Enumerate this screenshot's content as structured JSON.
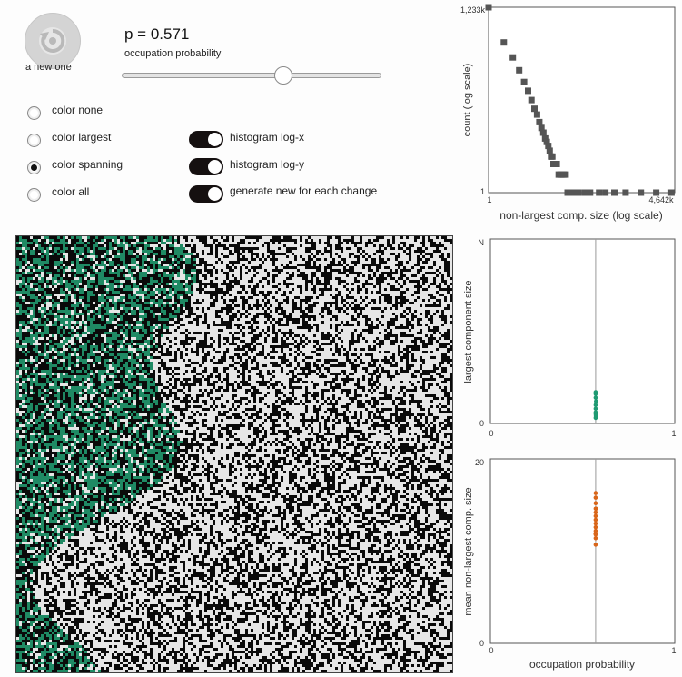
{
  "controls": {
    "reset_label": "a new one",
    "p_text": "p = 0.571",
    "slider_label": "occupation probability",
    "slider_value": 0.571,
    "radios": [
      {
        "label": "color none",
        "selected": false
      },
      {
        "label": "color largest",
        "selected": false
      },
      {
        "label": "color spanning",
        "selected": true
      },
      {
        "label": "color all",
        "selected": false
      }
    ],
    "toggles": [
      {
        "label": "histogram log-x",
        "on": true
      },
      {
        "label": "histogram log-y",
        "on": true
      },
      {
        "label": "generate new for each change",
        "on": true
      }
    ]
  },
  "colors": {
    "cluster": "#1f8a64",
    "occupied": "#e6e6e6",
    "empty": "#0a0a0a",
    "hist_marker": "#555555",
    "largest_marker": "#1f9a72",
    "mean_marker": "#d9661a"
  },
  "chart_data": [
    {
      "type": "scatter",
      "name": "histogram",
      "xlabel": "non-largest comp. size (log scale)",
      "ylabel": "count (log scale)",
      "xscale": "log",
      "yscale": "log",
      "xlim": [
        1,
        4642
      ],
      "ylim": [
        1,
        1233
      ],
      "x_tick_labels": [
        "1",
        "4,642k"
      ],
      "y_tick_labels": [
        "1",
        "1,233k"
      ],
      "x": [
        1,
        2,
        3,
        4,
        5,
        6,
        7,
        8,
        9,
        10,
        11,
        12,
        13,
        14,
        15,
        16,
        17,
        18,
        19,
        20,
        22,
        24,
        26,
        28,
        30,
        33,
        36,
        40,
        45,
        50,
        60,
        80,
        100,
        150,
        200,
        300,
        500,
        1000,
        2000,
        4000
      ],
      "y": [
        1233,
        320,
        180,
        110,
        70,
        50,
        35,
        25,
        20,
        15,
        12,
        10,
        8,
        7,
        6,
        5,
        4,
        4,
        3,
        3,
        3,
        2,
        2,
        2,
        2,
        2,
        1,
        1,
        1,
        1,
        1,
        1,
        1,
        1,
        1,
        1,
        1,
        1,
        1,
        1
      ]
    },
    {
      "type": "scatter",
      "name": "largest-component",
      "xlabel": "",
      "ylabel": "largest component size",
      "xlim": [
        0,
        1
      ],
      "y_top_label": "N",
      "x_tick_labels": [
        "0",
        "1"
      ],
      "y_tick_labels": [
        "0",
        "N"
      ],
      "vline_x": 0.571,
      "x": [
        0.571,
        0.571,
        0.571,
        0.571,
        0.573,
        0.571,
        0.571,
        0.571,
        0.571,
        0.572
      ],
      "y": [
        0.03,
        0.05,
        0.08,
        0.1,
        0.12,
        0.14,
        0.16,
        0.17,
        0.06,
        0.04
      ]
    },
    {
      "type": "scatter",
      "name": "mean-nonlargest",
      "xlabel": "occupation probability",
      "ylabel": "mean non-largest comp. size",
      "xlim": [
        0,
        1
      ],
      "ylim": [
        0,
        20
      ],
      "x_tick_labels": [
        "0",
        "1"
      ],
      "y_tick_labels": [
        "0",
        "20"
      ],
      "vline_x": 0.571,
      "x": [
        0.571,
        0.571,
        0.571,
        0.571,
        0.571,
        0.571,
        0.571,
        0.571,
        0.571,
        0.571,
        0.571,
        0.571,
        0.571,
        0.573,
        0.57
      ],
      "y": [
        16.3,
        15.8,
        15.2,
        14.6,
        14.2,
        13.8,
        13.4,
        13.0,
        12.6,
        12.2,
        11.8,
        11.4,
        10.7,
        14.6,
        11.9
      ]
    }
  ]
}
